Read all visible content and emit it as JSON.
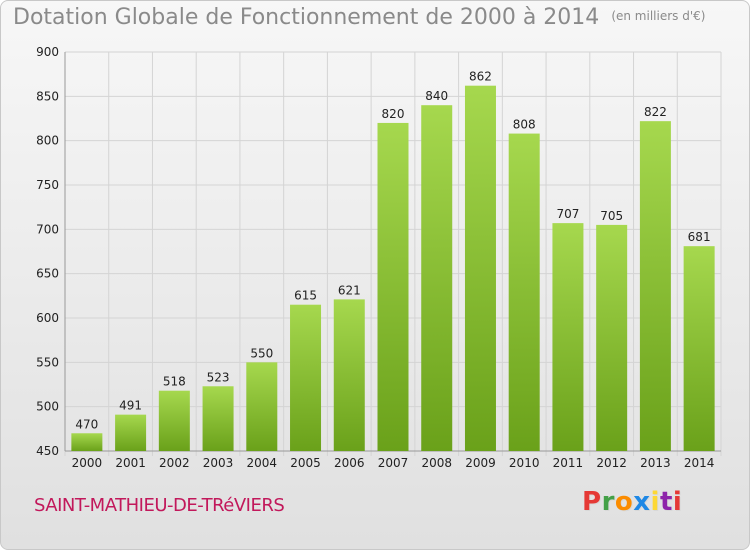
{
  "header": {
    "title": "Dotation Globale de Fonctionnement de 2000 à 2014",
    "unit": "(en milliers d'€)"
  },
  "footer": {
    "commune": "SAINT-MATHIEU-DE-TRéVIERS",
    "logo_letters": [
      "P",
      "r",
      "o",
      "x",
      "i",
      "t",
      "i"
    ],
    "logo_colors": [
      "#e53935",
      "#43a047",
      "#fb8c00",
      "#1e88e5",
      "#fdd835",
      "#8e24aa",
      "#e53935"
    ]
  },
  "colors": {
    "bar_light": "#a6d84e",
    "bar_dark": "#6aa11a",
    "grid": "#d4d4d4",
    "axis_text": "#222222"
  },
  "chart_data": {
    "type": "bar",
    "title": "Dotation Globale de Fonctionnement de 2000 à 2014",
    "subtitle": "(en milliers d'€)",
    "xlabel": "",
    "ylabel": "",
    "categories": [
      "2000",
      "2001",
      "2002",
      "2003",
      "2004",
      "2005",
      "2006",
      "2007",
      "2008",
      "2009",
      "2010",
      "2011",
      "2012",
      "2013",
      "2014"
    ],
    "values": [
      470,
      491,
      518,
      523,
      550,
      615,
      621,
      820,
      840,
      862,
      808,
      707,
      705,
      822,
      681
    ],
    "ylim": [
      450,
      900
    ],
    "yticks": [
      450,
      500,
      550,
      600,
      650,
      700,
      750,
      800,
      850,
      900
    ],
    "grid": true,
    "legend": "none"
  }
}
